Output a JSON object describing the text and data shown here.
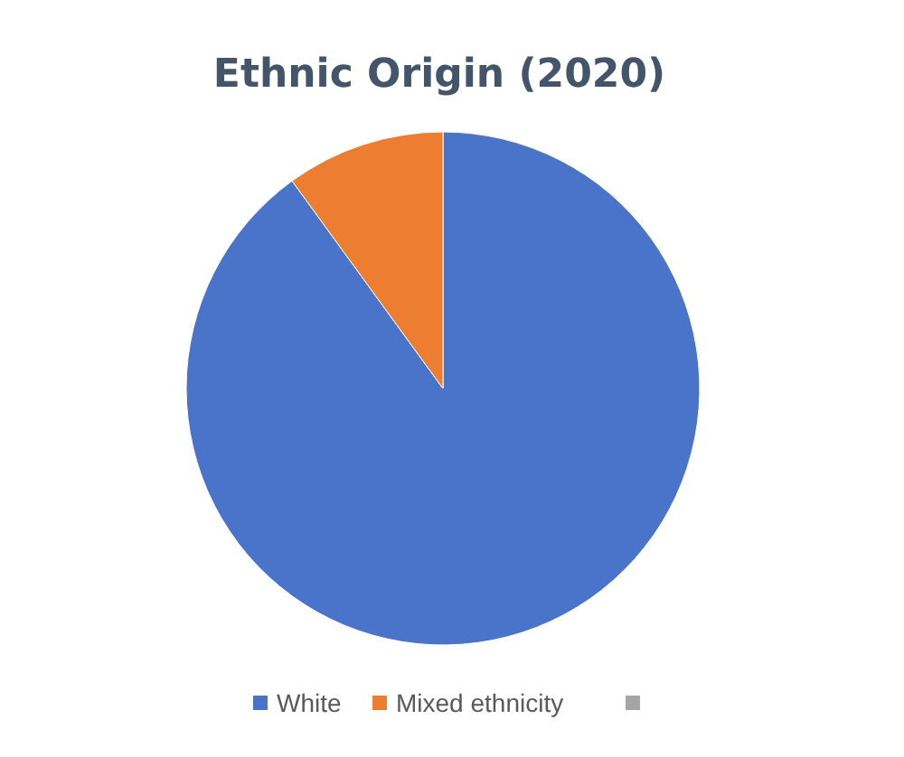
{
  "chart_data": {
    "type": "pie",
    "title": "Ethnic Origin (2020)",
    "categories": [
      "White",
      "Mixed ethnicity",
      null
    ],
    "values": [
      90,
      10,
      0
    ],
    "colors": [
      "#4a74c9",
      "#ed7d31",
      "#a5a5a5"
    ],
    "legend": "bottom"
  }
}
